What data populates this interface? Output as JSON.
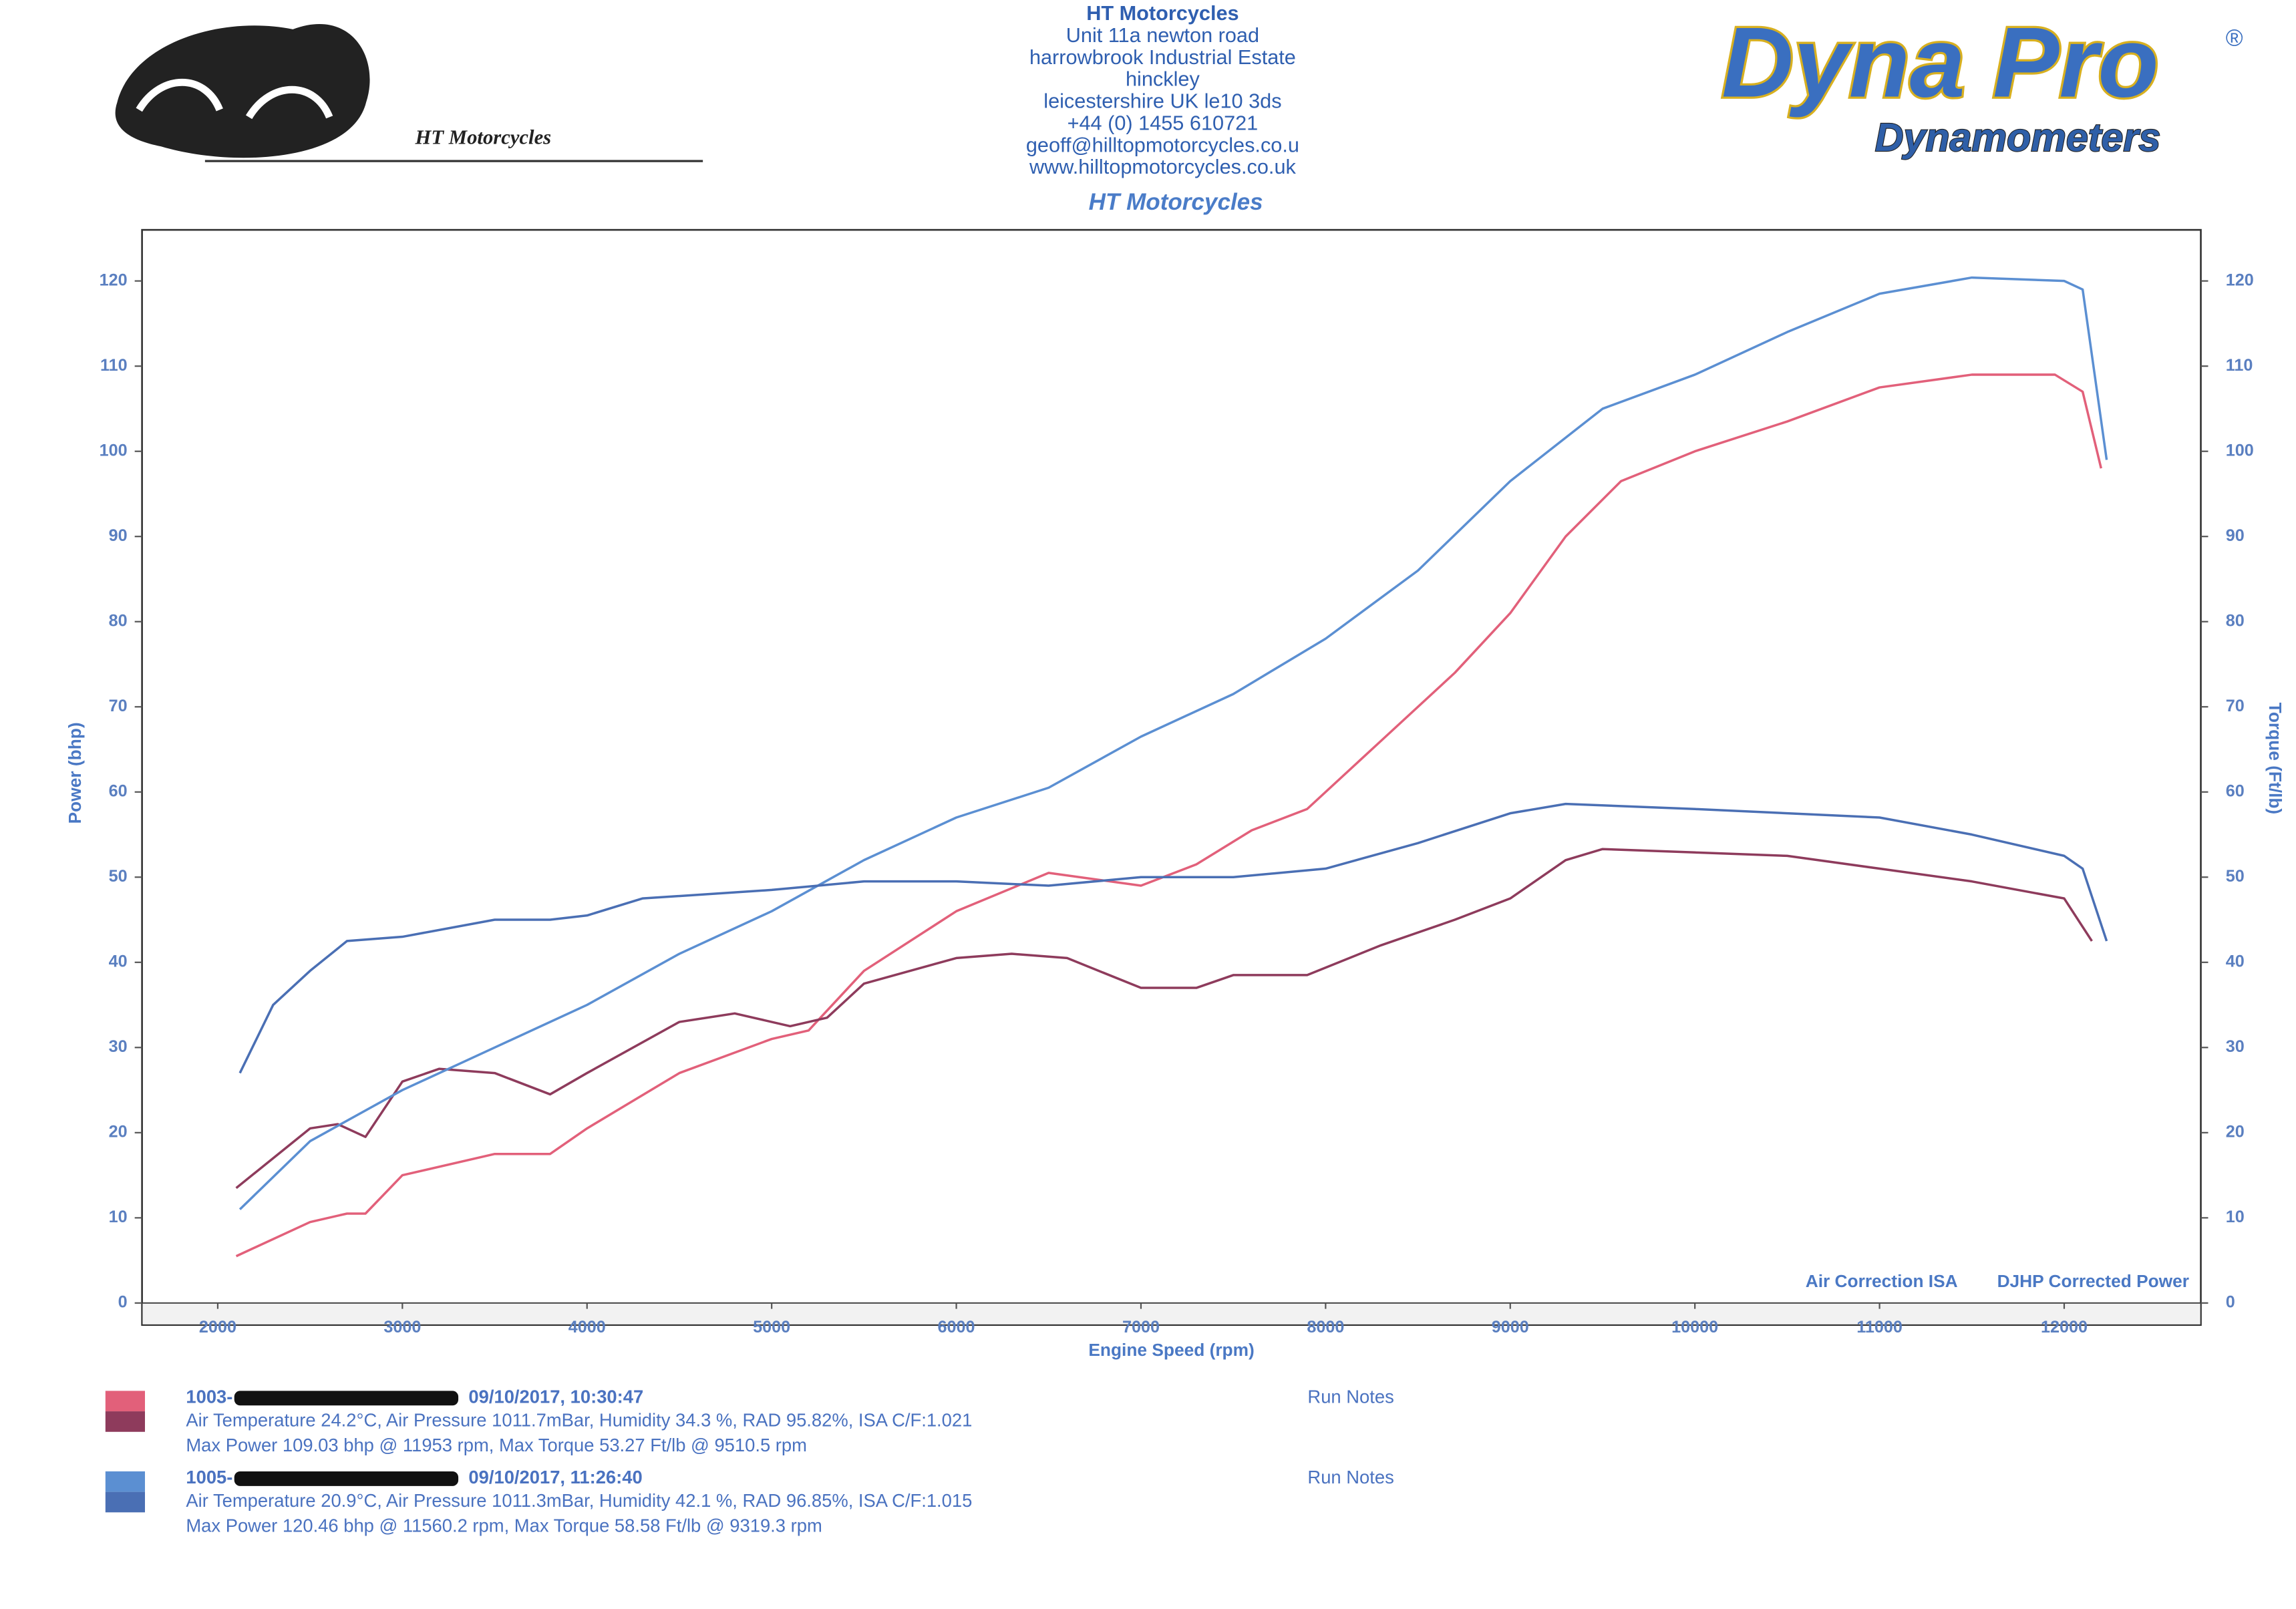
{
  "header": {
    "company": "HT Motorcycles",
    "address": [
      "Unit 11a newton road",
      "harrowbrook  Industrial Estate",
      "hinckley",
      "leicestershire UK le10 3ds",
      "+44 (0) 1455 610721",
      "geoff@hilltopmotorcycles.co.u",
      "www.hilltopmotorcycles.co.uk"
    ],
    "subtitle": "HT Motorcycles",
    "logo_text": "HT Motorcycles",
    "brand": "Dyna Pro",
    "brand_mark": "®",
    "brand_sub": "Dynamometers"
  },
  "chart_data": {
    "type": "line",
    "xlabel": "Engine Speed (rpm)",
    "ylabel": "Power (bhp)",
    "y2label": "Torque (Ft/lb)",
    "xlim": [
      1590,
      12740
    ],
    "xticks": [
      2000,
      3000,
      4000,
      5000,
      6000,
      7000,
      8000,
      9000,
      10000,
      11000,
      12000
    ],
    "ylim": [
      0,
      126
    ],
    "yticks": [
      0,
      10,
      20,
      30,
      40,
      50,
      60,
      70,
      80,
      90,
      100,
      110,
      120
    ],
    "y2lim": [
      0,
      126
    ],
    "y2ticks": [
      0,
      10,
      20,
      30,
      40,
      50,
      60,
      70,
      80,
      90,
      100,
      110,
      120
    ],
    "annotations": [
      "Air Correction ISA",
      "DJHP Corrected Power"
    ],
    "series": [
      {
        "color": "#e2607a",
        "x": [
          2100,
          2500,
          2700,
          2800,
          3000,
          3500,
          3800,
          4000,
          4500,
          5000,
          5200,
          5500,
          6000,
          6500,
          7000,
          7300,
          7600,
          7900,
          8300,
          8700,
          9000,
          9300,
          9600,
          10000,
          10500,
          11000,
          11500,
          11950,
          12100,
          12200
        ],
        "values": [
          5.5,
          9.5,
          10.5,
          10.5,
          15,
          17.5,
          17.5,
          20.5,
          27,
          31,
          32,
          39,
          46,
          50.5,
          49,
          51.5,
          55.5,
          58,
          66,
          74,
          81,
          90,
          96.5,
          100,
          103.5,
          107.5,
          109,
          109,
          107,
          98
        ]
      },
      {
        "color": "#8e3b5c",
        "x": [
          2100,
          2300,
          2500,
          2650,
          2800,
          3000,
          3200,
          3500,
          3800,
          4000,
          4500,
          4800,
          5100,
          5300,
          5500,
          6000,
          6300,
          6600,
          7000,
          7300,
          7500,
          7900,
          8300,
          8700,
          9000,
          9300,
          9500,
          10000,
          10500,
          11000,
          11500,
          12000,
          12150
        ],
        "values": [
          13.5,
          17,
          20.5,
          21,
          19.5,
          26,
          27.5,
          27,
          24.5,
          27,
          33,
          34,
          32.5,
          33.5,
          37.5,
          40.5,
          41,
          40.5,
          37,
          37,
          38.5,
          38.5,
          42,
          45,
          47.5,
          52,
          53.3,
          52.9,
          52.5,
          51,
          49.5,
          47.5,
          42.5
        ]
      },
      {
        "color": "#5b8fd2",
        "x": [
          2120,
          2500,
          3000,
          3500,
          4000,
          4500,
          5000,
          5500,
          6000,
          6500,
          7000,
          7500,
          8000,
          8500,
          9000,
          9500,
          10000,
          10500,
          11000,
          11500,
          12000,
          12100,
          12230
        ],
        "values": [
          11,
          19,
          25,
          30,
          35,
          41,
          46,
          52,
          57,
          60.5,
          66.5,
          71.5,
          78,
          86,
          96.5,
          105,
          109,
          114,
          118.5,
          120.4,
          120,
          119,
          99
        ]
      },
      {
        "color": "#4a6fb4",
        "axis": "y2",
        "x": [
          2120,
          2300,
          2500,
          2700,
          3000,
          3500,
          3800,
          4000,
          4300,
          5000,
          5500,
          6000,
          6500,
          7000,
          7500,
          8000,
          8500,
          9000,
          9300,
          10000,
          11000,
          11500,
          12000,
          12100,
          12230
        ],
        "values": [
          27,
          35,
          39,
          42.5,
          43,
          45,
          45,
          45.5,
          47.5,
          48.5,
          49.5,
          49.5,
          49,
          50,
          50,
          51,
          54,
          57.5,
          58.6,
          58,
          57,
          55,
          52.5,
          51,
          42.5
        ]
      }
    ]
  },
  "runs": [
    {
      "id": "1003-",
      "stamp": "09/10/2017,  10:30:47",
      "conditions": "Air Temperature 24.2°C, Air Pressure 1011.7mBar, Humidity 34.3 %, RAD 95.82%,   ISA  C/F:1.021",
      "summary": "Max Power 109.03 bhp @ 11953 rpm, Max Torque 53.27 Ft/lb @ 9510.5 rpm",
      "notes": "Run Notes"
    },
    {
      "id": "1005-",
      "stamp": "09/10/2017,  11:26:40",
      "conditions": "Air Temperature 20.9°C, Air Pressure 1011.3mBar, Humidity 42.1 %, RAD 96.85%,   ISA  C/F:1.015",
      "summary": "Max Power 120.46 bhp @ 11560.2 rpm, Max Torque 58.58 Ft/lb @ 9319.3 rpm",
      "notes": "Run Notes"
    }
  ]
}
